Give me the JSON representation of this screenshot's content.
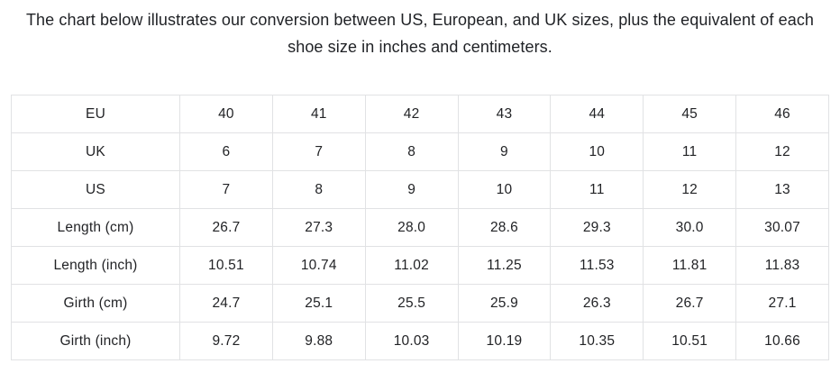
{
  "caption": "The chart below illustrates our conversion between US, European, and UK sizes, plus the equivalent of each shoe size in inches and centimeters.",
  "colors": {
    "text": "#222326",
    "border": "#e1e2e4",
    "background": "#ffffff"
  },
  "chart_data": {
    "type": "table",
    "row_headers": [
      "EU",
      "UK",
      "US",
      "Length (cm)",
      "Length (inch)",
      "Girth (cm)",
      "Girth (inch)"
    ],
    "rows": [
      {
        "label": "EU",
        "values": [
          "40",
          "41",
          "42",
          "43",
          "44",
          "45",
          "46"
        ]
      },
      {
        "label": "UK",
        "values": [
          "6",
          "7",
          "8",
          "9",
          "10",
          "11",
          "12"
        ]
      },
      {
        "label": "US",
        "values": [
          "7",
          "8",
          "9",
          "10",
          "11",
          "12",
          "13"
        ]
      },
      {
        "label": "Length (cm)",
        "values": [
          "26.7",
          "27.3",
          "28.0",
          "28.6",
          "29.3",
          "30.0",
          "30.07"
        ]
      },
      {
        "label": "Length (inch)",
        "values": [
          "10.51",
          "10.74",
          "11.02",
          "11.25",
          "11.53",
          "11.81",
          "11.83"
        ]
      },
      {
        "label": "Girth (cm)",
        "values": [
          "24.7",
          "25.1",
          "25.5",
          "25.9",
          "26.3",
          "26.7",
          "27.1"
        ]
      },
      {
        "label": "Girth (inch)",
        "values": [
          "9.72",
          "9.88",
          "10.03",
          "10.19",
          "10.35",
          "10.51",
          "10.66"
        ]
      }
    ]
  }
}
